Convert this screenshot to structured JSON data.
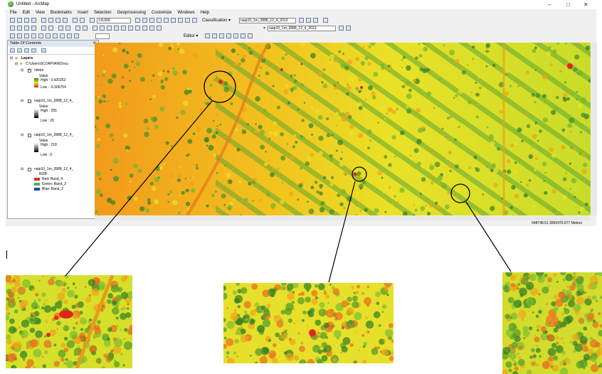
{
  "window": {
    "title": "Untitled - ArcMap"
  },
  "menu": [
    "File",
    "Edit",
    "View",
    "Bookmarks",
    "Insert",
    "Selection",
    "Geoprocessing",
    "Customize",
    "Windows",
    "Help"
  ],
  "toolbar": {
    "scale": "1:8,000",
    "classification_label": "Classification ▾",
    "classification_layer": "naip10_1m_2888_12_4_2013",
    "layer_dropdown": "naip10_1m_2888_12_4_2013",
    "editor_label": "Editor ▾"
  },
  "toc": {
    "title": "Table Of Contents",
    "root": "Layers",
    "folder": "C:\\Users\\SCORPIAN\\Docu",
    "layers": [
      {
        "name": "ndvim",
        "checked": true,
        "value_label": "Value",
        "high": "High : 0.420252",
        "low": "Low : -0.306754"
      },
      {
        "name": "naip10_1m_2888_12_4_",
        "checked": false,
        "value_label": "Value",
        "high": "High : 255",
        "low": "Low : 20"
      },
      {
        "name": "naip10_1m_2888_12_4_",
        "checked": false,
        "value_label": "Value",
        "high": "High : 218",
        "low": "Low : 0"
      },
      {
        "name": "naip10_1m_2888_12_4_",
        "checked": false,
        "value_label": "RGB",
        "bands": [
          {
            "label": "Red:  Band_4",
            "color": "#e3262b"
          },
          {
            "label": "Green: Band_3",
            "color": "#3ebf3a"
          },
          {
            "label": "Blue:  Band_2",
            "color": "#1f3fc4"
          }
        ]
      }
    ]
  },
  "status": {
    "coords": "548748.51  2865476.677 Meters"
  },
  "colors": {
    "ndvi_high": "#1f8a2a",
    "ndvi_mid": "#e6e21e",
    "ndvi_low": "#e0261c",
    "highlight": "#000000"
  }
}
